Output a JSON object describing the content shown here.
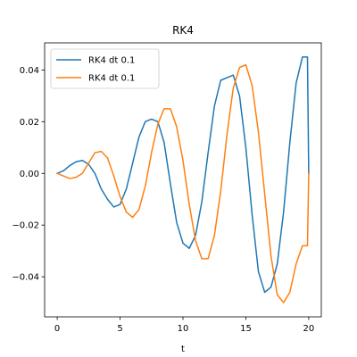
{
  "chart_data": {
    "type": "line",
    "title": "RK4",
    "xlabel": "t",
    "ylabel": "",
    "xlim": [
      -1.0,
      21.0
    ],
    "ylim": [
      -0.0555,
      0.0505
    ],
    "xticks": [
      0,
      5,
      10,
      15,
      20
    ],
    "xtick_labels": [
      "0",
      "5",
      "10",
      "15",
      "20"
    ],
    "yticks": [
      -0.04,
      -0.02,
      0.0,
      0.02,
      0.04
    ],
    "ytick_labels": [
      "−0.04",
      "−0.02",
      "0.00",
      "0.02",
      "0.04"
    ],
    "grid": false,
    "legend_position": "upper left",
    "series": [
      {
        "name": "RK4 dt 0.1",
        "color": "#1f77b4",
        "x": [
          0,
          0.5,
          1,
          1.5,
          2,
          2.5,
          3,
          3.5,
          4,
          4.5,
          5,
          5.5,
          6,
          6.5,
          7,
          7.5,
          8,
          8.5,
          9,
          9.5,
          10,
          10.5,
          11,
          11.5,
          12,
          12.5,
          13,
          13.5,
          14,
          14.5,
          15,
          15.5,
          16,
          16.5,
          17,
          17.5,
          18,
          18.5,
          19,
          19.5,
          19.9,
          20.0
        ],
        "y": [
          0.0,
          0.001,
          0.003,
          0.0045,
          0.005,
          0.0035,
          0.0,
          -0.006,
          -0.01,
          -0.013,
          -0.012,
          -0.006,
          0.004,
          0.014,
          0.02,
          0.021,
          0.02,
          0.012,
          -0.004,
          -0.019,
          -0.027,
          -0.029,
          -0.024,
          -0.011,
          0.008,
          0.026,
          0.036,
          0.037,
          0.038,
          0.03,
          0.01,
          -0.016,
          -0.038,
          -0.046,
          -0.044,
          -0.035,
          -0.015,
          0.012,
          0.035,
          0.045,
          0.045,
          0.0
        ]
      },
      {
        "name": "RK4 dt 0.1",
        "color": "#ff7f0e",
        "x": [
          0,
          0.5,
          1,
          1.5,
          2,
          2.5,
          3,
          3.5,
          4,
          4.5,
          5,
          5.5,
          6,
          6.5,
          7,
          7.5,
          8,
          8.5,
          9,
          9.5,
          10,
          10.5,
          11,
          11.5,
          12,
          12.5,
          13,
          13.5,
          14,
          14.5,
          15,
          15.5,
          16,
          16.5,
          17,
          17.5,
          18,
          18.5,
          19,
          19.5,
          19.9,
          20.0
        ],
        "y": [
          0.0,
          -0.001,
          -0.002,
          -0.0015,
          0.0,
          0.004,
          0.008,
          0.0085,
          0.006,
          -0.001,
          -0.009,
          -0.015,
          -0.017,
          -0.014,
          -0.005,
          0.008,
          0.019,
          0.025,
          0.025,
          0.018,
          0.005,
          -0.012,
          -0.026,
          -0.033,
          -0.033,
          -0.024,
          -0.007,
          0.015,
          0.033,
          0.041,
          0.042,
          0.034,
          0.016,
          -0.008,
          -0.032,
          -0.047,
          -0.05,
          -0.046,
          -0.035,
          -0.028,
          -0.028,
          0.0
        ]
      }
    ]
  }
}
